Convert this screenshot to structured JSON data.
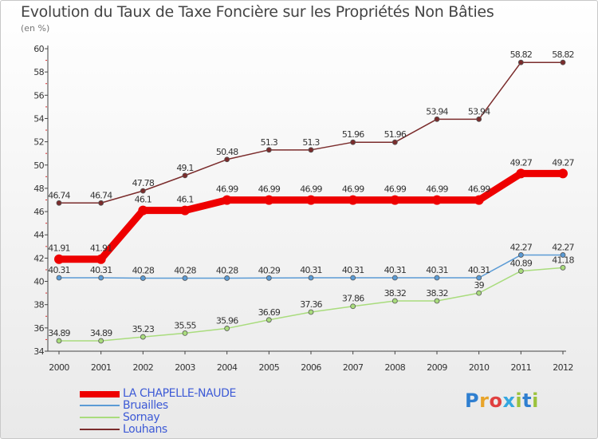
{
  "title": "Evolution du Taux de Taxe Foncière sur les Propriétés Non Bâties",
  "unit_label": "(en %)",
  "logo": {
    "text": "Proxiti",
    "letters": [
      "P",
      "r",
      "o",
      "x",
      "i",
      "t",
      "i"
    ],
    "colors": [
      "#2f7fd0",
      "#e8a42a",
      "#e04040",
      "#35a7e0",
      "#9bc23c",
      "#2f7fd0",
      "#9bc23c"
    ]
  },
  "chart_data": {
    "type": "line",
    "title": "Evolution du Taux de Taxe Foncière sur les Propriétés Non Bâties",
    "ylabel": "(en %)",
    "xlabel": "",
    "x": [
      "2000",
      "2001",
      "2002",
      "2003",
      "2004",
      "2005",
      "2006",
      "2007",
      "2008",
      "2009",
      "2010",
      "2011",
      "2012"
    ],
    "ylim": [
      34,
      60
    ],
    "yticks": [
      34,
      36,
      38,
      40,
      42,
      44,
      46,
      48,
      50,
      52,
      54,
      56,
      58,
      60
    ],
    "grid": false,
    "legend_position": "bottom-left",
    "series": [
      {
        "name": "LA CHAPELLE-NAUDE",
        "color": "#ee0000",
        "values": [
          41.91,
          41.91,
          46.1,
          46.1,
          46.99,
          46.99,
          46.99,
          46.99,
          46.99,
          46.99,
          46.99,
          49.27,
          49.27
        ],
        "labels": [
          "41.91",
          "41.91",
          "46.1",
          "46.1",
          "46.99",
          "46.99",
          "46.99",
          "46.99",
          "46.99",
          "46.99",
          "46.99",
          "49.27",
          "49.27"
        ]
      },
      {
        "name": "Bruailles",
        "color": "#5b9bd5",
        "values": [
          40.31,
          40.31,
          40.28,
          40.28,
          40.28,
          40.29,
          40.31,
          40.31,
          40.31,
          40.31,
          40.31,
          42.27,
          42.27
        ],
        "labels": [
          "40.31",
          "40.31",
          "40.28",
          "40.28",
          "40.28",
          "40.29",
          "40.31",
          "40.31",
          "40.31",
          "40.31",
          "40.31",
          "42.27",
          "42.27"
        ]
      },
      {
        "name": "Sornay",
        "color": "#a9dc7d",
        "values": [
          34.89,
          34.89,
          35.23,
          35.55,
          35.96,
          36.69,
          37.36,
          37.86,
          38.32,
          38.32,
          39,
          40.89,
          41.18
        ],
        "labels": [
          "34.89",
          "34.89",
          "35.23",
          "35.55",
          "35.96",
          "36.69",
          "37.36",
          "37.86",
          "38.32",
          "38.32",
          "39",
          "40.89",
          "41.18"
        ]
      },
      {
        "name": "Louhans",
        "color": "#7b2c2c",
        "values": [
          46.74,
          46.74,
          47.78,
          49.1,
          50.48,
          51.3,
          51.3,
          51.96,
          51.96,
          53.94,
          53.94,
          58.82,
          58.82
        ],
        "labels": [
          "46.74",
          "46.74",
          "47.78",
          "49.1",
          "50.48",
          "51.3",
          "51.3",
          "51.96",
          "51.96",
          "53.94",
          "53.94",
          "58.82",
          "58.82"
        ]
      }
    ]
  }
}
